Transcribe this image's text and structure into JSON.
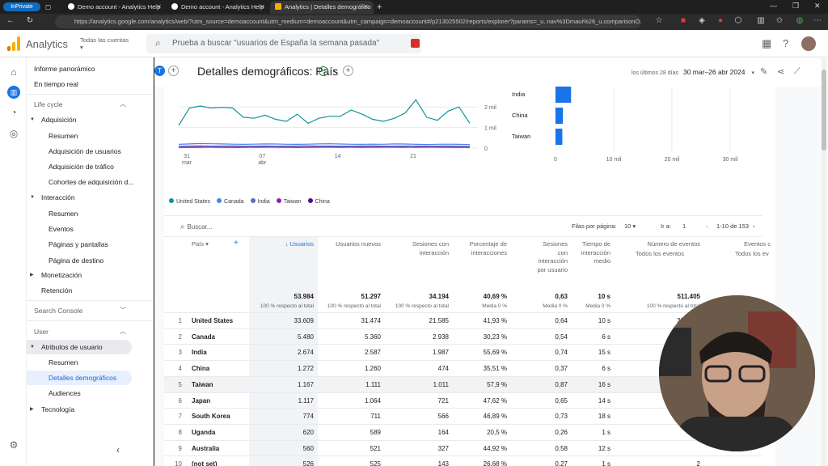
{
  "browser": {
    "inprivate": "InPrivate",
    "tabs": [
      "Demo account - Analytics Help",
      "Demo account - Analytics Help",
      "Analytics | Detalles demográfico"
    ],
    "url": "https://analytics.google.com/analytics/web/?utm_source=demoaccount&utm_medium=demoaccount&utm_campaign=demoaccount#/p213025502/reports/explorer?params=_u..nav%3Dmaui%26_u.comparisonO..."
  },
  "header": {
    "app_name": "Analytics",
    "accounts": "Todas las cuentas",
    "search_placeholder": "Prueba a buscar \"usuarios de España la semana pasada\""
  },
  "sidebar": {
    "top": [
      "Informe panorámico",
      "En tiempo real"
    ],
    "lifecycle": "Life cycle",
    "adquisicion": "Adquisición",
    "adquisicion_items": [
      "Resumen",
      "Adquisición de usuarios",
      "Adquisición de tráfico",
      "Cohortes de adquisición d..."
    ],
    "interaccion": "Interacción",
    "interaccion_items": [
      "Resumen",
      "Eventos",
      "Páginas y pantallas",
      "Página de destino"
    ],
    "monetizacion": "Monetización",
    "retencion": "Retención",
    "search_console": "Search Console",
    "user": "User",
    "atributos": "Atributos de usuario",
    "atributos_items": [
      "Resumen",
      "Detalles demográficos",
      "Audiences"
    ],
    "tecnologia": "Tecnología"
  },
  "page": {
    "chip": "T",
    "title": "Detalles demográficos: País",
    "date_label": "los últimos 28 días",
    "date_range": "30 mar–26 abr 2024"
  },
  "chart_data": [
    {
      "type": "line",
      "x_ticks": [
        "31 mar",
        "07 abr",
        "14",
        "21"
      ],
      "y_ticks": [
        "2 mil",
        "1 mil",
        "0"
      ],
      "series": [
        {
          "name": "United States",
          "color": "#12939a",
          "values": [
            1100,
            1950,
            2050,
            1950,
            1980,
            1950,
            1500,
            1450,
            1600,
            1400,
            1300,
            1650,
            1200,
            1450,
            1550,
            1550,
            1850,
            1650,
            1400,
            1300,
            1450,
            1700,
            2350,
            1500,
            1350,
            1800,
            2000,
            1200
          ]
        },
        {
          "name": "Canada",
          "color": "#4285f4",
          "values": [
            180,
            200,
            220,
            210,
            200,
            190,
            180,
            190,
            200,
            195,
            185,
            180,
            190,
            200,
            210,
            195,
            185,
            180,
            190,
            185,
            200,
            195,
            180,
            175,
            185,
            190,
            180,
            170
          ]
        },
        {
          "name": "India",
          "color": "#5c6bc0",
          "values": [
            90,
            100,
            110,
            95,
            100,
            105,
            90,
            95,
            100,
            90,
            95,
            100,
            110,
            95,
            100,
            90,
            95,
            100,
            105,
            95,
            90,
            100,
            95,
            90,
            95,
            100,
            90,
            85
          ]
        },
        {
          "name": "Taiwan",
          "color": "#8e24aa",
          "values": [
            40,
            45,
            50,
            45,
            40,
            45,
            50,
            40,
            45,
            50,
            45,
            40,
            45,
            50,
            45,
            40,
            45,
            50,
            40,
            45,
            50,
            45,
            40,
            45,
            50,
            45,
            40,
            40
          ]
        },
        {
          "name": "China",
          "color": "#4a148c",
          "values": [
            30,
            35,
            40,
            45,
            40,
            35,
            40,
            45,
            50,
            45,
            40,
            35,
            40,
            45,
            50,
            55,
            45,
            40,
            45,
            50,
            45,
            40,
            45,
            50,
            45,
            40,
            45,
            35
          ]
        }
      ]
    },
    {
      "type": "bar",
      "categories": [
        "India",
        "China",
        "Taiwan"
      ],
      "values": [
        2674,
        1272,
        1167
      ],
      "x_ticks": [
        "0",
        "10 mil",
        "20 mil",
        "30 mil"
      ],
      "xlim": [
        0,
        30000
      ]
    }
  ],
  "table": {
    "search_placeholder": "Buscar...",
    "rows_per_page_label": "Filas por página:",
    "rows_per_page": "10",
    "goto_label": "Ir a:",
    "goto_value": "1",
    "range": "1-10 de 153",
    "dimension_header": "País",
    "headers": [
      "Usuarios",
      "Usuarios nuevos",
      "Sesiones con interacción",
      "Porcentaje de interacciones",
      "Sesiones con interacción por usuario",
      "Tiempo de interacción medio",
      "Número de eventos",
      "Eventos c"
    ],
    "events_sub": "Todos los eventos",
    "events_sub2": "Todos los ev",
    "totals": [
      "53.984",
      "51.297",
      "34.194",
      "40,69 %",
      "0,63",
      "10 s",
      "511.405"
    ],
    "totals_sub": [
      "100 % respecto al total",
      "100 % respecto al total",
      "100 % respecto al total",
      "Media 0 %",
      "Media 0 %",
      "Media 0 %",
      "100 % respecto al total",
      "100 % resp"
    ],
    "rows": [
      {
        "n": "1",
        "country": "United States",
        "v": [
          "33.609",
          "31.474",
          "21.585",
          "41,93 %",
          "0,64",
          "10 s",
          "325.382"
        ]
      },
      {
        "n": "2",
        "country": "Canada",
        "v": [
          "5.480",
          "5.360",
          "2.938",
          "30,23 %",
          "0,54",
          "6 s",
          "51"
        ]
      },
      {
        "n": "3",
        "country": "India",
        "v": [
          "2.674",
          "2.587",
          "1.987",
          "55,69 %",
          "0,74",
          "15 s",
          ""
        ]
      },
      {
        "n": "4",
        "country": "China",
        "v": [
          "1.272",
          "1.260",
          "474",
          "35,51 %",
          "0,37",
          "6 s",
          ""
        ]
      },
      {
        "n": "5",
        "country": "Taiwan",
        "v": [
          "1.167",
          "1.111",
          "1.011",
          "57,9 %",
          "0,87",
          "16 s",
          ""
        ]
      },
      {
        "n": "6",
        "country": "Japan",
        "v": [
          "1.117",
          "1.064",
          "721",
          "47,62 %",
          "0,65",
          "14 s",
          ""
        ]
      },
      {
        "n": "7",
        "country": "South Korea",
        "v": [
          "774",
          "711",
          "566",
          "46,89 %",
          "0,73",
          "18 s",
          ""
        ]
      },
      {
        "n": "8",
        "country": "Uganda",
        "v": [
          "620",
          "589",
          "164",
          "20,5 %",
          "0,26",
          "1 s",
          ""
        ]
      },
      {
        "n": "9",
        "country": "Australia",
        "v": [
          "560",
          "521",
          "327",
          "44,92 %",
          "0,58",
          "12 s",
          ""
        ]
      },
      {
        "n": "10",
        "country": "(not set)",
        "v": [
          "526",
          "525",
          "143",
          "26,68 %",
          "0,27",
          "1 s",
          "2"
        ]
      }
    ]
  },
  "colors": {
    "accent": "#1a73e8",
    "bar": "#1a73e8"
  }
}
